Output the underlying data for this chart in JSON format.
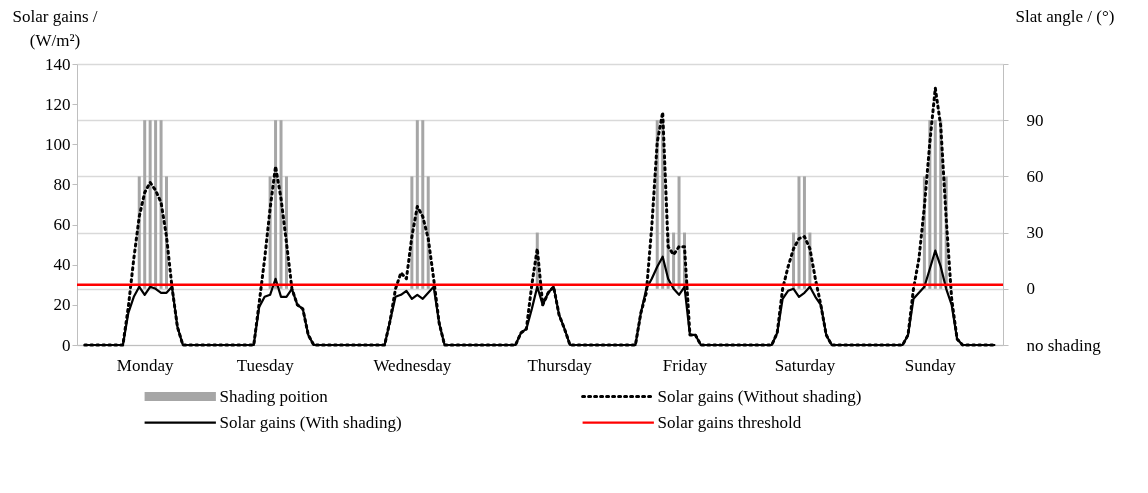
{
  "chart_data": {
    "type": "line",
    "ylabel": "Solar gains /\n(W/m²)",
    "y2label": "Slat angle / (°)",
    "categories": [
      null,
      null,
      null,
      null,
      null,
      null,
      null,
      null,
      null,
      null,
      null,
      "Monday",
      null,
      null,
      null,
      null,
      null,
      null,
      null,
      null,
      null,
      null,
      null,
      null,
      null,
      null,
      null,
      null,
      null,
      null,
      null,
      null,
      null,
      "Tuesday",
      null,
      null,
      null,
      null,
      null,
      null,
      null,
      null,
      null,
      null,
      null,
      null,
      null,
      null,
      null,
      null,
      null,
      null,
      null,
      null,
      null,
      null,
      null,
      null,
      null,
      null,
      "Wednesday",
      null,
      null,
      null,
      null,
      null,
      null,
      null,
      null,
      null,
      null,
      null,
      null,
      null,
      null,
      null,
      null,
      null,
      null,
      null,
      null,
      null,
      null,
      null,
      null,
      null,
      null,
      "Thursday",
      null,
      null,
      null,
      null,
      null,
      null,
      null,
      null,
      null,
      null,
      null,
      null,
      null,
      null,
      null,
      null,
      null,
      null,
      null,
      null,
      null,
      null,
      "Friday",
      null,
      null,
      null,
      null,
      null,
      null,
      null,
      null,
      null,
      null,
      null,
      null,
      null,
      null,
      null,
      null,
      null,
      null,
      null,
      null,
      null,
      "Saturday",
      null,
      null,
      null,
      null,
      null,
      null,
      null,
      null,
      null,
      null,
      null,
      null,
      null,
      null,
      null,
      null,
      null,
      null,
      null,
      null,
      null,
      null,
      "Sunday",
      null,
      null,
      null,
      null,
      null,
      null,
      null,
      null,
      null,
      null,
      null,
      null
    ],
    "ylim": [
      0,
      140
    ],
    "yticks": [
      0,
      20,
      40,
      60,
      80,
      100,
      120,
      140
    ],
    "y2lim": [
      -30,
      120
    ],
    "y2ticks": [
      {
        "value": -30,
        "label": "no shading"
      },
      0,
      30,
      60,
      90,
      {
        "value": 120,
        "label": null
      }
    ],
    "grid": "y2",
    "legend": "bottom",
    "marker": "none",
    "series": [
      {
        "type": "bar",
        "name": "Shading poition",
        "axis": "y2",
        "color": "#a6a6a6",
        "values": [
          null,
          null,
          null,
          null,
          null,
          null,
          null,
          null,
          null,
          0,
          60,
          90,
          90,
          90,
          90,
          60,
          null,
          null,
          null,
          null,
          null,
          null,
          null,
          null,
          null,
          null,
          null,
          null,
          null,
          null,
          null,
          null,
          null,
          0,
          60,
          90,
          90,
          60,
          0,
          null,
          null,
          null,
          null,
          null,
          null,
          null,
          null,
          null,
          null,
          null,
          null,
          null,
          null,
          null,
          null,
          null,
          null,
          null,
          0,
          null,
          60,
          90,
          90,
          60,
          0,
          null,
          null,
          null,
          null,
          null,
          null,
          null,
          null,
          null,
          null,
          null,
          null,
          null,
          null,
          null,
          null,
          null,
          null,
          30,
          null,
          null,
          null,
          null,
          null,
          null,
          null,
          null,
          null,
          null,
          null,
          null,
          null,
          null,
          null,
          null,
          null,
          null,
          null,
          null,
          0,
          90,
          90,
          30,
          30,
          60,
          30,
          null,
          null,
          null,
          null,
          null,
          null,
          null,
          null,
          null,
          null,
          null,
          null,
          null,
          null,
          null,
          null,
          null,
          null,
          0,
          30,
          60,
          60,
          30,
          0,
          null,
          null,
          null,
          null,
          null,
          null,
          null,
          null,
          null,
          null,
          null,
          null,
          null,
          null,
          null,
          null,
          null,
          null,
          0,
          60,
          90,
          90,
          90,
          60,
          null,
          null,
          null,
          null,
          null,
          null,
          null,
          null,
          null
        ]
      },
      {
        "name": "Solar gains (Without shading)",
        "color": "#000000",
        "line_style": "dotted",
        "values": [
          0,
          0,
          0,
          0,
          0,
          0,
          0,
          0,
          19,
          43,
          64,
          76,
          81,
          77,
          71,
          54,
          29,
          9,
          0,
          0,
          0,
          0,
          0,
          0,
          0,
          0,
          0,
          0,
          0,
          0,
          0,
          0,
          21,
          43,
          68,
          89,
          73,
          51,
          28,
          20,
          18,
          5,
          0,
          0,
          0,
          0,
          0,
          0,
          0,
          0,
          0,
          0,
          0,
          0,
          0,
          0,
          12,
          28,
          36,
          33,
          54,
          69,
          64,
          53,
          33,
          11,
          0,
          0,
          0,
          0,
          0,
          0,
          0,
          0,
          0,
          0,
          0,
          0,
          0,
          0,
          6,
          8,
          30,
          48,
          20,
          26,
          29,
          15,
          8,
          0,
          0,
          0,
          0,
          0,
          0,
          0,
          0,
          0,
          0,
          0,
          0,
          0,
          16,
          26,
          59,
          101,
          116,
          49,
          45,
          49,
          49,
          5,
          5,
          0,
          0,
          0,
          0,
          0,
          0,
          0,
          0,
          0,
          0,
          0,
          0,
          0,
          0,
          6,
          28,
          39,
          48,
          53,
          54,
          48,
          33,
          20,
          5,
          0,
          0,
          0,
          0,
          0,
          0,
          0,
          0,
          0,
          0,
          0,
          0,
          0,
          0,
          5,
          28,
          43,
          69,
          101,
          128,
          109,
          63,
          23,
          3,
          0,
          0,
          0,
          0,
          0,
          0,
          0
        ]
      },
      {
        "name": "Solar gains (With shading)",
        "color": "#000000",
        "line_style": "solid",
        "values": [
          0,
          0,
          0,
          0,
          0,
          0,
          0,
          0,
          16,
          24,
          29,
          25,
          29,
          28,
          26,
          26,
          29,
          9,
          0,
          0,
          0,
          0,
          0,
          0,
          0,
          0,
          0,
          0,
          0,
          0,
          0,
          0,
          19,
          24,
          25,
          33,
          24,
          24,
          28,
          20,
          18,
          5,
          0,
          0,
          0,
          0,
          0,
          0,
          0,
          0,
          0,
          0,
          0,
          0,
          0,
          0,
          12,
          24,
          25,
          27,
          23,
          25,
          23,
          26,
          29,
          11,
          0,
          0,
          0,
          0,
          0,
          0,
          0,
          0,
          0,
          0,
          0,
          0,
          0,
          0,
          6,
          8,
          18,
          29,
          20,
          26,
          29,
          15,
          8,
          0,
          0,
          0,
          0,
          0,
          0,
          0,
          0,
          0,
          0,
          0,
          0,
          0,
          16,
          28,
          33,
          39,
          44,
          33,
          28,
          25,
          29,
          5,
          5,
          0,
          0,
          0,
          0,
          0,
          0,
          0,
          0,
          0,
          0,
          0,
          0,
          0,
          0,
          6,
          23,
          27,
          28,
          24,
          26,
          29,
          24,
          20,
          5,
          0,
          0,
          0,
          0,
          0,
          0,
          0,
          0,
          0,
          0,
          0,
          0,
          0,
          0,
          5,
          23,
          26,
          29,
          38,
          47,
          39,
          28,
          20,
          3,
          0,
          0,
          0,
          0,
          0,
          0,
          0
        ]
      }
    ],
    "ref_lines": [
      {
        "axis": "y",
        "value": 30,
        "label": "Solar gains threshold",
        "color": "#ff0000",
        "line_style": "solid"
      }
    ]
  }
}
